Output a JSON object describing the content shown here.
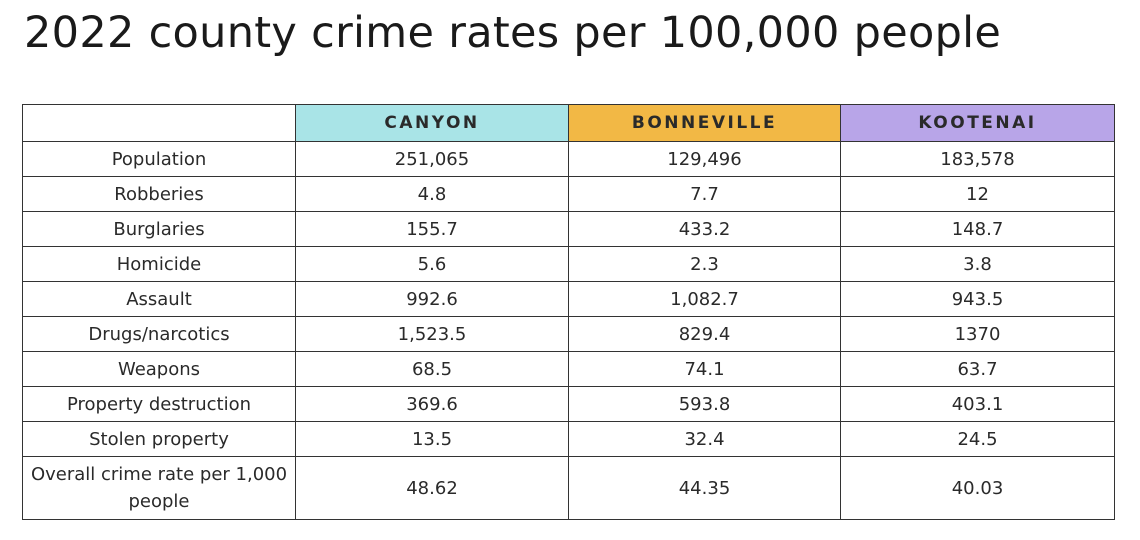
{
  "title": "2022 county crime rates per 100,000 people",
  "colors": {
    "canyon": "#a9e4e7",
    "bonneville": "#f2b845",
    "kootenai": "#b8a5e8"
  },
  "chart_data": {
    "type": "table",
    "title": "2022 county crime rates per 100,000 people",
    "columns": [
      "",
      "CANYON",
      "BONNEVILLE",
      "KOOTENAI"
    ],
    "rows": [
      [
        "Population",
        "251,065",
        "129,496",
        "183,578"
      ],
      [
        "Robberies",
        "4.8",
        "7.7",
        "12"
      ],
      [
        "Burglaries",
        "155.7",
        "433.2",
        "148.7"
      ],
      [
        "Homicide",
        "5.6",
        "2.3",
        "3.8"
      ],
      [
        "Assault",
        "992.6",
        "1,082.7",
        "943.5"
      ],
      [
        "Drugs/narcotics",
        "1,523.5",
        "829.4",
        "1370"
      ],
      [
        "Weapons",
        "68.5",
        "74.1",
        "63.7"
      ],
      [
        "Property destruction",
        "369.6",
        "593.8",
        "403.1"
      ],
      [
        "Stolen property",
        "13.5",
        "32.4",
        "24.5"
      ],
      [
        "Overall crime rate per 1,000 people",
        "48.62",
        "44.35",
        "40.03"
      ]
    ]
  }
}
